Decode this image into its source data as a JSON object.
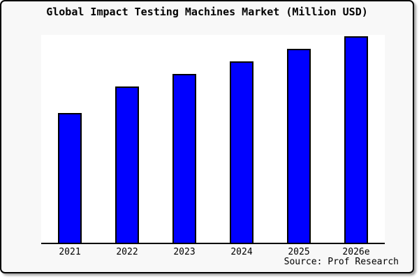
{
  "title": "Global Impact Testing Machines Market (Million USD)",
  "source": "Source: Prof Research",
  "colors": {
    "bar_fill": "#0000ff",
    "bar_stroke": "#000000",
    "plot_bg": "#ffffff",
    "frame_bg": "#f8f8f8",
    "frame_border": "#000000",
    "axis": "#000000",
    "text": "#000000"
  },
  "chart_data": {
    "type": "bar",
    "title": "Global Impact Testing Machines Market (Million USD)",
    "categories": [
      "2021",
      "2022",
      "2023",
      "2024",
      "2025",
      "2026e"
    ],
    "values": [
      63,
      76,
      82,
      88,
      94,
      100
    ],
    "values_note": "y-axis has no ticks or labels in the image; values are relative bar heights estimated from pixels with 2026e = 100",
    "xlabel": "",
    "ylabel": "",
    "ylim": [
      0,
      100
    ],
    "grid": false,
    "legend": false,
    "source_note": "Source: Prof Research"
  }
}
